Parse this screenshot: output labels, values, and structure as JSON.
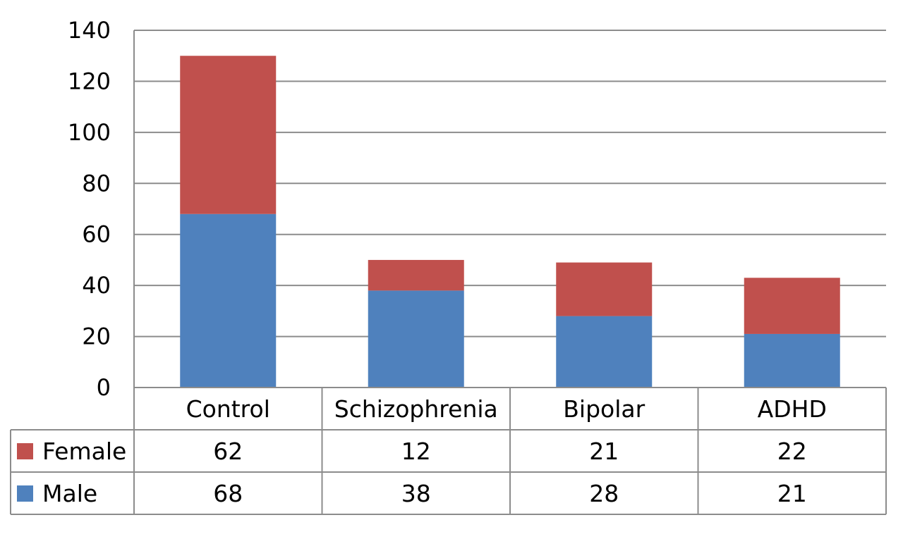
{
  "chart_data": {
    "type": "bar",
    "stacked": true,
    "categories": [
      "Control",
      "Schizophrenia",
      "Bipolar",
      "ADHD"
    ],
    "series": [
      {
        "name": "Male",
        "values": [
          68,
          38,
          28,
          21
        ],
        "color": "#4F81BD"
      },
      {
        "name": "Female",
        "values": [
          62,
          12,
          21,
          22
        ],
        "color": "#C0504D"
      }
    ],
    "table_rows": [
      "Female",
      "Male"
    ],
    "yticks": [
      0,
      20,
      40,
      60,
      80,
      100,
      120,
      140
    ],
    "ylim": [
      0,
      140
    ],
    "grid": true,
    "legend": "data-table"
  }
}
